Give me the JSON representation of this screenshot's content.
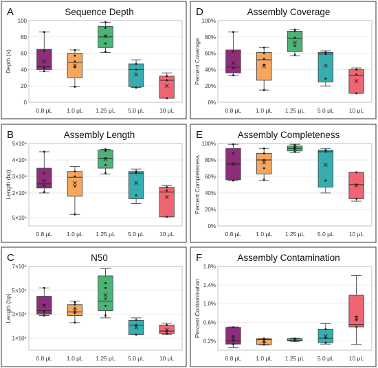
{
  "chart_data": [
    {
      "letter": "A",
      "type": "boxplot",
      "title": "Sequence Depth",
      "ylabel": "Depth (x)",
      "ylim": [
        0,
        100
      ],
      "yticks": [
        {
          "v": 0,
          "label": "0"
        },
        {
          "v": 20,
          "label": "20"
        },
        {
          "v": 40,
          "label": "40"
        },
        {
          "v": 60,
          "label": "60"
        },
        {
          "v": 80,
          "label": "80"
        },
        {
          "v": 100,
          "label": "100"
        }
      ],
      "categories": [
        "0.8 μL",
        "1.0 μL",
        "1.25 μL",
        "5.0 μL",
        "10 μL"
      ],
      "boxes": [
        {
          "min": 38,
          "q1": 40,
          "median": 44,
          "q3": 65,
          "max": 86,
          "mean": 50,
          "points": [
            38,
            42,
            63,
            86
          ]
        },
        {
          "min": 19,
          "q1": 30,
          "median": 49,
          "q3": 60,
          "max": 64,
          "mean": 45,
          "points": [
            19,
            43,
            50,
            57,
            64
          ]
        },
        {
          "min": 61,
          "q1": 67,
          "median": 80,
          "q3": 93,
          "max": 98,
          "mean": 81,
          "points": [
            62,
            72,
            81,
            91,
            98
          ]
        },
        {
          "min": 18,
          "q1": 19,
          "median": 40,
          "q3": 47,
          "max": 52,
          "mean": 34,
          "points": [
            18,
            40,
            47
          ]
        },
        {
          "min": 5,
          "q1": 5,
          "median": 27,
          "q3": 32,
          "max": 36,
          "mean": 20,
          "points": [
            5,
            27,
            32
          ]
        }
      ]
    },
    {
      "letter": "D",
      "type": "boxplot",
      "title": "Assembly Coverage",
      "ylabel": "Percent Coverage",
      "ylim": [
        0,
        100
      ],
      "yticks": [
        {
          "v": 0,
          "label": "0%"
        },
        {
          "v": 20,
          "label": "20%"
        },
        {
          "v": 40,
          "label": "40%"
        },
        {
          "v": 60,
          "label": "60%"
        },
        {
          "v": 80,
          "label": "80%"
        },
        {
          "v": 100,
          "label": "100%"
        }
      ],
      "categories": [
        "0.8 μL",
        "1.0 μL",
        "1.25 μL",
        "5.0 μL",
        "10 μL"
      ],
      "boxes": [
        {
          "min": 33,
          "q1": 36,
          "median": 43,
          "q3": 64,
          "max": 86,
          "mean": 48,
          "points": [
            33,
            42,
            62,
            86
          ]
        },
        {
          "min": 15,
          "q1": 27,
          "median": 52,
          "q3": 61,
          "max": 67,
          "mean": 44,
          "points": [
            15,
            46,
            53,
            60,
            67
          ]
        },
        {
          "min": 57,
          "q1": 62,
          "median": 78,
          "q3": 87,
          "max": 89,
          "mean": 73,
          "points": [
            58,
            69,
            79,
            87,
            89
          ]
        },
        {
          "min": 20,
          "q1": 25,
          "median": 59,
          "q3": 61,
          "max": 63,
          "mean": 45,
          "points": [
            29,
            59,
            61
          ]
        },
        {
          "min": 11,
          "q1": 11,
          "median": 33,
          "q3": 40,
          "max": 42,
          "mean": 26,
          "points": [
            11,
            34,
            40
          ]
        }
      ]
    },
    {
      "letter": "B",
      "type": "boxplot",
      "title": "Assembly Length",
      "ylabel": "Length (bp)",
      "ylim": [
        0,
        5000000
      ],
      "yticks": [
        {
          "v": 500000,
          "label": "5×10⁵"
        },
        {
          "v": 2000000,
          "label": "2×10⁶"
        },
        {
          "v": 3000000,
          "label": "3×10⁶"
        },
        {
          "v": 4000000,
          "label": "4×10⁶"
        },
        {
          "v": 5000000,
          "label": "5×10⁶"
        }
      ],
      "categories": [
        "0.8 μL",
        "1.0 μL",
        "1.25 μL",
        "5.0 μL",
        "10 μL"
      ],
      "boxes": [
        {
          "min": 2000000,
          "q1": 2300000,
          "median": 2550000,
          "q3": 3500000,
          "max": 4500000,
          "mean": 2750000,
          "points": [
            2050000,
            2450000,
            3200000,
            4500000
          ]
        },
        {
          "min": 700000,
          "q1": 1800000,
          "median": 2950000,
          "q3": 3300000,
          "max": 3600000,
          "mean": 2600000,
          "points": [
            700000,
            2400000,
            3000000,
            3300000
          ]
        },
        {
          "min": 3150000,
          "q1": 3500000,
          "median": 4100000,
          "q3": 4600000,
          "max": 4650000,
          "mean": 4050000,
          "points": [
            3200000,
            3700000,
            4100000,
            4550000,
            4650000
          ]
        },
        {
          "min": 1350000,
          "q1": 1650000,
          "median": 3200000,
          "q3": 3300000,
          "max": 3450000,
          "mean": 2600000,
          "points": [
            1850000,
            3200000,
            3300000
          ]
        },
        {
          "min": 550000,
          "q1": 550000,
          "median": 2050000,
          "q3": 2350000,
          "max": 2450000,
          "mean": 1750000,
          "points": [
            550000,
            2150000,
            2350000
          ]
        }
      ]
    },
    {
      "letter": "E",
      "type": "boxplot",
      "title": "Assembly Completeness",
      "ylabel": "Percent Completeness",
      "ylim": [
        0,
        100
      ],
      "yticks": [
        {
          "v": 0,
          "label": "0%"
        },
        {
          "v": 20,
          "label": "20%"
        },
        {
          "v": 40,
          "label": "40%"
        },
        {
          "v": 60,
          "label": "60%"
        },
        {
          "v": 80,
          "label": "80%"
        },
        {
          "v": 100,
          "label": "100%"
        }
      ],
      "categories": [
        "0.8 μL",
        "1.0 μL",
        "1.25 μL",
        "5.0 μL",
        "10 μL"
      ],
      "boxes": [
        {
          "min": 55,
          "q1": 56,
          "median": 75,
          "q3": 94,
          "max": 99,
          "mean": 75,
          "points": [
            55,
            75,
            88,
            99
          ]
        },
        {
          "min": 55,
          "q1": 63,
          "median": 80,
          "q3": 88,
          "max": 94,
          "mean": 77,
          "points": [
            56,
            70,
            80,
            88,
            94
          ]
        },
        {
          "min": 89,
          "q1": 91,
          "median": 94,
          "q3": 97,
          "max": 99,
          "mean": 94,
          "points": [
            90,
            93,
            95,
            97,
            98
          ]
        },
        {
          "min": 40,
          "q1": 47,
          "median": 90,
          "q3": 92,
          "max": 94,
          "mean": 74,
          "points": [
            55,
            90,
            92
          ]
        },
        {
          "min": 30,
          "q1": 33,
          "median": 50,
          "q3": 65,
          "max": 65,
          "mean": 49,
          "points": [
            33,
            50,
            65
          ]
        }
      ]
    },
    {
      "letter": "C",
      "type": "boxplot",
      "title": "N50",
      "ylabel": "Length (bp)",
      "ylim": [
        0,
        70000
      ],
      "yticks": [
        {
          "v": 10000,
          "label": "1×10⁴"
        },
        {
          "v": 30000,
          "label": "3×10⁴"
        },
        {
          "v": 50000,
          "label": "5×10⁴"
        },
        {
          "v": 70000,
          "label": "7×10⁴"
        }
      ],
      "categories": [
        "0.8 μL",
        "1.0 μL",
        "1.25 μL",
        "5.0 μL",
        "10 μL"
      ],
      "boxes": [
        {
          "min": 29000,
          "q1": 30000,
          "median": 33000,
          "q3": 45000,
          "max": 52000,
          "mean": 37000,
          "points": [
            29000,
            32000,
            38000,
            52000
          ]
        },
        {
          "min": 23000,
          "q1": 29000,
          "median": 32000,
          "q3": 38000,
          "max": 41000,
          "mean": 33000,
          "points": [
            23000,
            31000,
            35000,
            38000,
            40000
          ]
        },
        {
          "min": 27000,
          "q1": 33000,
          "median": 41000,
          "q3": 62000,
          "max": 68000,
          "mean": 46000,
          "points": [
            29000,
            37000,
            43000,
            52000,
            56000
          ]
        },
        {
          "min": 13000,
          "q1": 13000,
          "median": 21000,
          "q3": 25000,
          "max": 27000,
          "mean": 19000,
          "points": [
            13000,
            21000,
            25000
          ]
        },
        {
          "min": 13000,
          "q1": 14000,
          "median": 16000,
          "q3": 21000,
          "max": 22500,
          "mean": 17000,
          "points": [
            14000,
            16000,
            21000
          ]
        }
      ]
    },
    {
      "letter": "F",
      "type": "boxplot",
      "title": "Assembly Contamination",
      "ylabel": "Percent Contamination",
      "ylim": [
        0,
        1.8
      ],
      "yticks": [
        {
          "v": 0.2,
          "label": "0.2%"
        },
        {
          "v": 0.6,
          "label": "0.6%"
        },
        {
          "v": 1.0,
          "label": "1.0%"
        },
        {
          "v": 1.4,
          "label": "1.4%"
        },
        {
          "v": 1.8,
          "label": "1.8%"
        }
      ],
      "categories": [
        "0.8 μL",
        "1.0 μL",
        "1.25 μL",
        "5.0 μL",
        "10 μL"
      ],
      "boxes": [
        {
          "min": 0.05,
          "q1": 0.13,
          "median": 0.2,
          "q3": 0.49,
          "max": 0.5,
          "mean": 0.25,
          "points": [
            0.13,
            0.2,
            0.3,
            0.49
          ]
        },
        {
          "min": 0.11,
          "q1": 0.12,
          "median": 0.23,
          "q3": 0.25,
          "max": 0.25,
          "mean": 0.2,
          "points": [
            0.12,
            0.17,
            0.23,
            0.25
          ]
        },
        {
          "min": 0.19,
          "q1": 0.2,
          "median": 0.21,
          "q3": 0.25,
          "max": 0.26,
          "mean": 0.22,
          "points": [
            0.2,
            0.21,
            0.22,
            0.25
          ]
        },
        {
          "min": 0.13,
          "q1": 0.16,
          "median": 0.26,
          "q3": 0.45,
          "max": 0.57,
          "mean": 0.3,
          "points": [
            0.16,
            0.26,
            0.45
          ]
        },
        {
          "min": 0.12,
          "q1": 0.5,
          "median": 0.55,
          "q3": 1.18,
          "max": 1.6,
          "mean": 0.7,
          "points": [
            0.5,
            0.65,
            0.72
          ]
        }
      ]
    }
  ],
  "colors": [
    "#8e2d7a",
    "#f7a65c",
    "#4db477",
    "#38adb0",
    "#ef6571"
  ]
}
